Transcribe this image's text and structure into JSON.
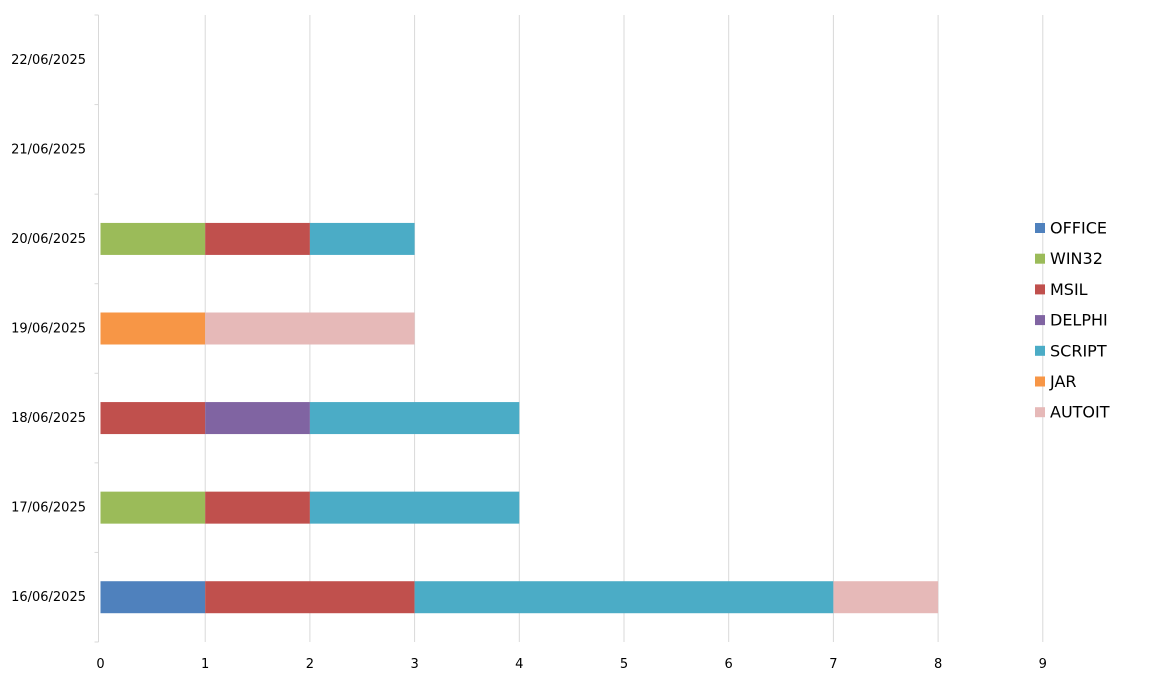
{
  "chart_data": {
    "type": "bar",
    "orientation": "horizontal",
    "stacked": true,
    "title": "",
    "xlabel": "",
    "ylabel": "",
    "xlim": [
      0,
      9
    ],
    "x_ticks": [
      "0",
      "1",
      "2",
      "3",
      "4",
      "5",
      "6",
      "7",
      "8",
      "9"
    ],
    "grid": true,
    "legend_position": "right",
    "categories": [
      "16/06/2025",
      "17/06/2025",
      "18/06/2025",
      "19/06/2025",
      "20/06/2025",
      "21/06/2025",
      "22/06/2025"
    ],
    "series": [
      {
        "name": "OFFICE",
        "color": "#4F81BD",
        "values": [
          1,
          0,
          0,
          0,
          0,
          0,
          0
        ]
      },
      {
        "name": "WIN32",
        "color": "#9BBB59",
        "values": [
          0,
          1,
          0,
          0,
          1,
          0,
          0
        ]
      },
      {
        "name": "MSIL",
        "color": "#C0504D",
        "values": [
          2,
          1,
          1,
          0,
          1,
          0,
          0
        ]
      },
      {
        "name": "DELPHI",
        "color": "#8064A2",
        "values": [
          0,
          0,
          1,
          0,
          0,
          0,
          0
        ]
      },
      {
        "name": "SCRIPT",
        "color": "#4BACC6",
        "values": [
          4,
          2,
          2,
          0,
          1,
          0,
          0
        ]
      },
      {
        "name": "JAR",
        "color": "#F79646",
        "values": [
          0,
          0,
          0,
          1,
          0,
          0,
          0
        ]
      },
      {
        "name": "AUTOIT",
        "color": "#E6B9B8",
        "values": [
          1,
          0,
          0,
          2,
          0,
          0,
          0
        ]
      }
    ]
  }
}
